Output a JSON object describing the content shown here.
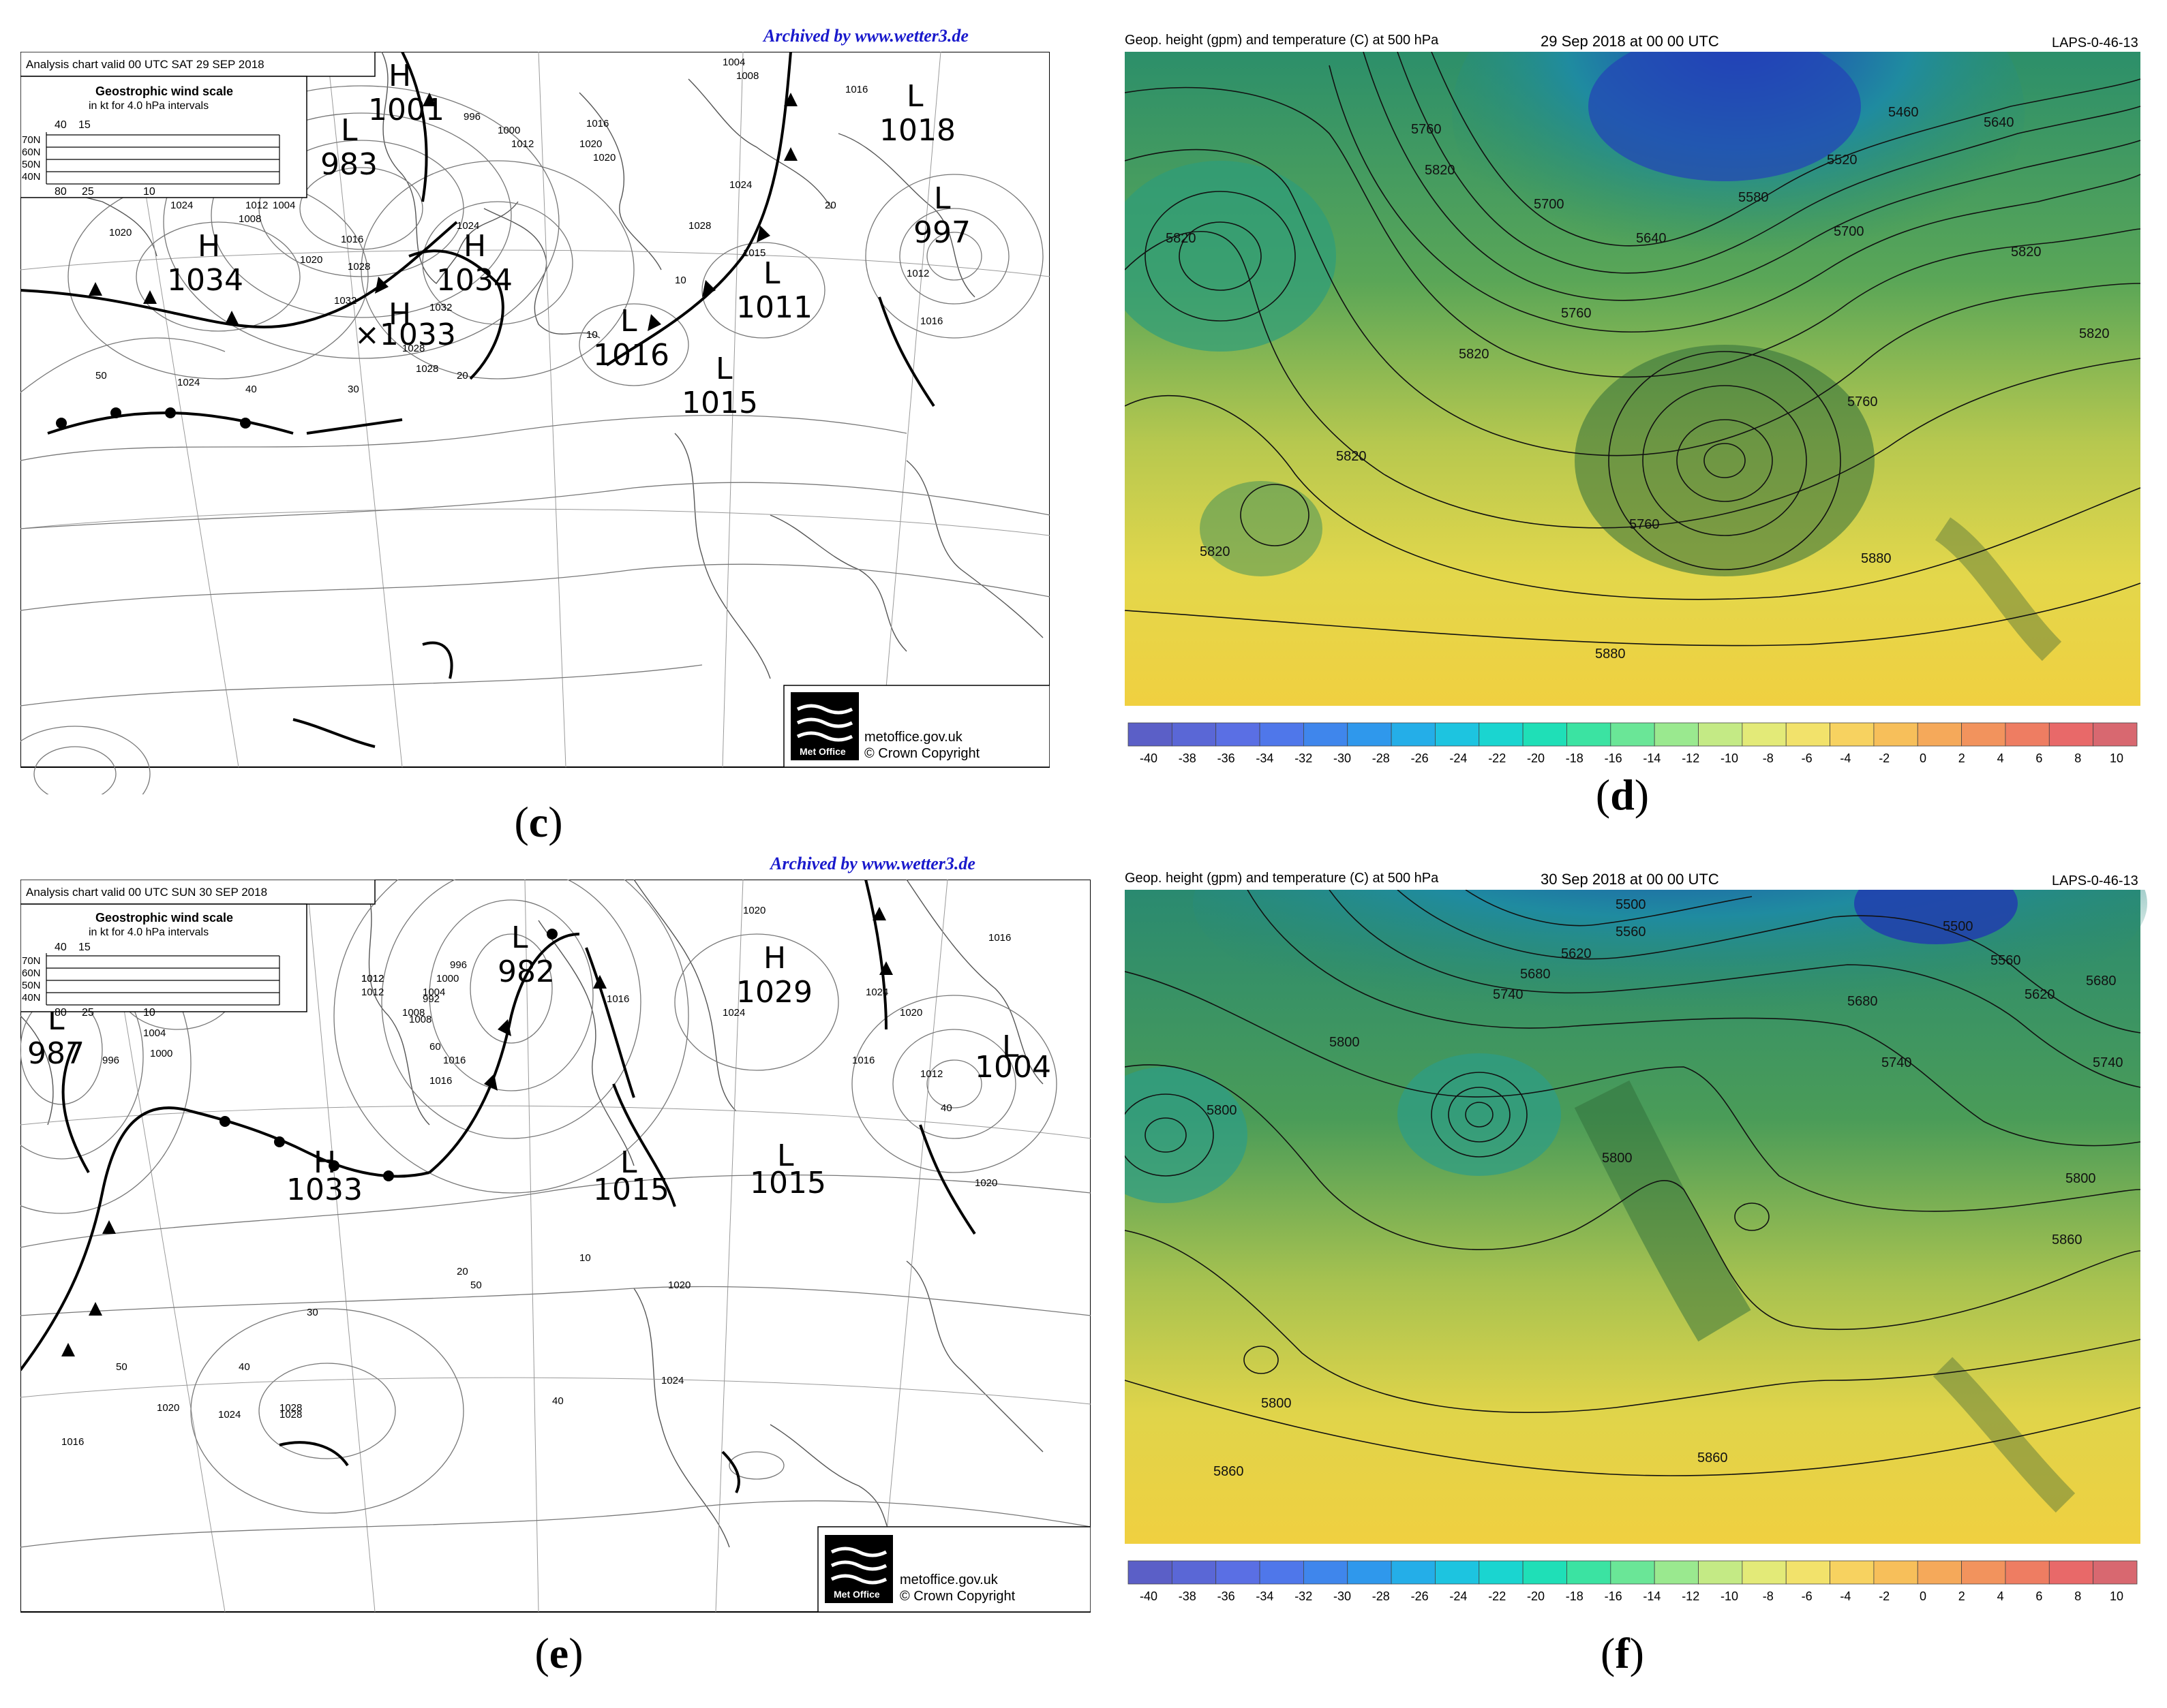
{
  "colors": {
    "colorbar": [
      "#5b5fc7",
      "#5a67d6",
      "#5a6fe4",
      "#4f77ea",
      "#3f86ec",
      "#2f98ec",
      "#24aee8",
      "#1dc4e0",
      "#1ad5d0",
      "#1fdfb7",
      "#3be3a2",
      "#6ae697",
      "#9ae98f",
      "#c4ea85",
      "#e3ea78",
      "#f2e26b",
      "#f7d260",
      "#f7bf5a",
      "#f5a95a",
      "#f2935d",
      "#ee7d62",
      "#e86969",
      "#d86870"
    ]
  },
  "panels": {
    "c": {
      "caption_open": "(",
      "caption_letter": "c",
      "caption_close": ")",
      "archived": "Archived by www.wetter3.de",
      "header": "Analysis chart  valid 00 UTC SAT 29  SEP 2018",
      "scale_title": "Geostrophic wind scale",
      "scale_sub": "in kt for 4.0 hPa intervals",
      "scale_top": [
        "40",
        "15"
      ],
      "scale_lat": [
        "70N",
        "60N",
        "50N",
        "40N"
      ],
      "scale_bottom": [
        "80",
        "25",
        "10"
      ],
      "logo_text": "Met Office",
      "credit_1": "metoffice.gov.uk",
      "credit_2": "© Crown Copyright",
      "centers": [
        {
          "type": "H",
          "value": "1001"
        },
        {
          "type": "L",
          "value": "983"
        },
        {
          "type": "L",
          "value": "1018"
        },
        {
          "type": "L",
          "value": "997"
        },
        {
          "type": "H",
          "value": "1034"
        },
        {
          "type": "H",
          "value": "1034"
        },
        {
          "type": "H",
          "value": "×1033"
        },
        {
          "type": "L",
          "value": "1011"
        },
        {
          "type": "L",
          "value": "1016"
        },
        {
          "type": "L",
          "value": "1015"
        }
      ],
      "isobar_labels": [
        "1004",
        "1008",
        "1016",
        "1020",
        "1024",
        "1028",
        "1032",
        "1012",
        "996",
        "1000",
        "1016",
        "1020",
        "1024",
        "1028",
        "1015",
        "1016",
        "1012",
        "1016",
        "1020",
        "1024",
        "1028",
        "1020",
        "1024",
        "1016",
        "1032",
        "1028",
        "1008",
        "1012",
        "1000",
        "1004",
        "50",
        "40",
        "30",
        "20",
        "10",
        "20",
        "10"
      ]
    },
    "d": {
      "caption_open": "(",
      "caption_letter": "d",
      "caption_close": ")",
      "title_left": "Geop. height (gpm) and temperature (C) at 500 hPa",
      "title_center": "29 Sep 2018 at 00 00 UTC",
      "title_right": "LAPS-0-46-13",
      "contour_labels": [
        "5460",
        "5520",
        "5580",
        "5640",
        "5640",
        "5700",
        "5700",
        "5760",
        "5760",
        "5760",
        "5760",
        "5820",
        "5820",
        "5820",
        "5820",
        "5820",
        "5820",
        "5820",
        "5880",
        "5880"
      ],
      "colorbar_ticks": [
        "-40",
        "-38",
        "-36",
        "-34",
        "-32",
        "-30",
        "-28",
        "-26",
        "-24",
        "-22",
        "-20",
        "-18",
        "-16",
        "-14",
        "-12",
        "-10",
        "-8",
        "-6",
        "-4",
        "-2",
        "0",
        "2",
        "4",
        "6",
        "8",
        "10"
      ]
    },
    "e": {
      "caption_open": "(",
      "caption_letter": "e",
      "caption_close": ")",
      "archived": "Archived by www.wetter3.de",
      "header": "Analysis chart  valid 00 UTC SUN 30  SEP 2018",
      "scale_title": "Geostrophic wind scale",
      "scale_sub": "in kt for 4.0 hPa intervals",
      "scale_top": [
        "40",
        "15"
      ],
      "scale_lat": [
        "70N",
        "60N",
        "50N",
        "40N"
      ],
      "scale_bottom": [
        "80",
        "25",
        "10"
      ],
      "logo_text": "Met Office",
      "credit_1": "metoffice.gov.uk",
      "credit_2": "© Crown Copyright",
      "centers": [
        {
          "type": "H",
          "value": "1029"
        },
        {
          "type": "L",
          "value": "982"
        },
        {
          "type": "H",
          "value": "1029"
        },
        {
          "type": "L",
          "value": "987"
        },
        {
          "type": "L",
          "value": "1004"
        },
        {
          "type": "H",
          "value": "1033"
        },
        {
          "type": "L",
          "value": "1015"
        },
        {
          "type": "L",
          "value": "1015"
        }
      ],
      "isobar_labels": [
        "996",
        "1000",
        "1004",
        "1008",
        "1012",
        "1016",
        "1020",
        "1024",
        "1028",
        "1020",
        "1024",
        "1016",
        "1012",
        "1016",
        "1020",
        "1024",
        "1028",
        "1012",
        "1016",
        "1020",
        "1024",
        "1008",
        "1016",
        "1020",
        "992",
        "1012",
        "1016",
        "1004",
        "1000",
        "996",
        "50",
        "60",
        "40",
        "30",
        "20",
        "10",
        "40",
        "50",
        "40"
      ]
    },
    "f": {
      "caption_open": "(",
      "caption_letter": "f",
      "caption_close": ")",
      "title_left": "Geop. height (gpm) and temperature (C) at 500 hPa",
      "title_center": "30 Sep 2018 at 00 00 UTC",
      "title_right": "LAPS-0-46-13",
      "contour_labels": [
        "5500",
        "5500",
        "5560",
        "5560",
        "5620",
        "5620",
        "5680",
        "5680",
        "5680",
        "5740",
        "5740",
        "5740",
        "5800",
        "5800",
        "5800",
        "5800",
        "5800",
        "5860",
        "5860",
        "5860"
      ],
      "colorbar_ticks": [
        "-40",
        "-38",
        "-36",
        "-34",
        "-32",
        "-30",
        "-28",
        "-26",
        "-24",
        "-22",
        "-20",
        "-18",
        "-16",
        "-14",
        "-12",
        "-10",
        "-8",
        "-6",
        "-4",
        "-2",
        "0",
        "2",
        "4",
        "6",
        "8",
        "10"
      ]
    }
  }
}
